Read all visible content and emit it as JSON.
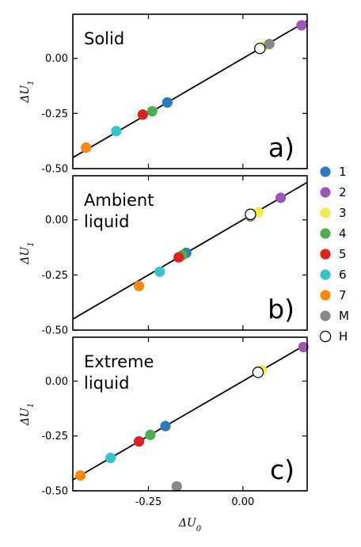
{
  "chart_data": [
    {
      "type": "scatter",
      "title": "",
      "panel_text": [
        "Solid"
      ],
      "tag": "a)",
      "xlabel": "",
      "ylabel": "ΔU1",
      "xlim": [
        -0.45,
        0.17
      ],
      "ylim": [
        -0.5,
        0.2
      ],
      "yticks": [
        0.0,
        -0.25,
        -0.5
      ],
      "ytick_labels": [
        "0.00",
        "-0.25",
        "-0.50"
      ],
      "xticks": [
        -0.25,
        0.0
      ],
      "fit_line": [
        [
          -0.45,
          -0.45
        ],
        [
          0.17,
          0.17
        ]
      ],
      "points": [
        {
          "label": "1",
          "x": -0.2,
          "y": -0.2
        },
        {
          "label": "2",
          "x": 0.155,
          "y": 0.15
        },
        {
          "label": "3",
          "x": 0.055,
          "y": 0.055
        },
        {
          "label": "4",
          "x": -0.24,
          "y": -0.24
        },
        {
          "label": "5",
          "x": -0.265,
          "y": -0.255
        },
        {
          "label": "6",
          "x": -0.335,
          "y": -0.33
        },
        {
          "label": "7",
          "x": -0.415,
          "y": -0.405
        },
        {
          "label": "M",
          "x": 0.07,
          "y": 0.065
        },
        {
          "label": "H",
          "x": 0.045,
          "y": 0.045
        }
      ]
    },
    {
      "type": "scatter",
      "title": "",
      "panel_text": [
        "Ambient",
        "liquid"
      ],
      "tag": "b)",
      "xlabel": "",
      "ylabel": "ΔU1",
      "xlim": [
        -0.45,
        0.17
      ],
      "ylim": [
        -0.5,
        0.2
      ],
      "yticks": [
        0.0,
        -0.25,
        -0.5
      ],
      "ytick_labels": [
        "0.00",
        "-0.25",
        "-0.50"
      ],
      "xticks": [
        -0.25,
        0.0
      ],
      "fit_line": [
        [
          -0.45,
          -0.45
        ],
        [
          0.17,
          0.17
        ]
      ],
      "points": [
        {
          "label": "1",
          "x": -0.15,
          "y": -0.15
        },
        {
          "label": "2",
          "x": 0.1,
          "y": 0.1
        },
        {
          "label": "3",
          "x": 0.04,
          "y": 0.035
        },
        {
          "label": "4",
          "x": -0.16,
          "y": -0.16
        },
        {
          "label": "5",
          "x": -0.17,
          "y": -0.17
        },
        {
          "label": "6",
          "x": -0.22,
          "y": -0.235
        },
        {
          "label": "7",
          "x": -0.275,
          "y": -0.3
        },
        {
          "label": "M",
          "x": 0.02,
          "y": 0.015
        },
        {
          "label": "H",
          "x": 0.02,
          "y": 0.025
        }
      ]
    },
    {
      "type": "scatter",
      "title": "",
      "panel_text": [
        "Extreme",
        "liquid"
      ],
      "tag": "c)",
      "xlabel": "ΔU0",
      "ylabel": "ΔU1",
      "xlim": [
        -0.45,
        0.17
      ],
      "ylim": [
        -0.5,
        0.2
      ],
      "yticks": [
        0.0,
        -0.25,
        -0.5
      ],
      "ytick_labels": [
        "0.00",
        "-0.25",
        "-0.50"
      ],
      "xticks": [
        -0.25,
        0.0
      ],
      "xtick_labels": [
        "-0.25",
        "0.00"
      ],
      "fit_line": [
        [
          -0.45,
          -0.45
        ],
        [
          0.17,
          0.17
        ]
      ],
      "points": [
        {
          "label": "1",
          "x": -0.205,
          "y": -0.205
        },
        {
          "label": "2",
          "x": 0.16,
          "y": 0.155
        },
        {
          "label": "3",
          "x": 0.05,
          "y": 0.05
        },
        {
          "label": "4",
          "x": -0.245,
          "y": -0.245
        },
        {
          "label": "5",
          "x": -0.275,
          "y": -0.275
        },
        {
          "label": "6",
          "x": -0.35,
          "y": -0.35
        },
        {
          "label": "7",
          "x": -0.43,
          "y": -0.43
        },
        {
          "label": "M",
          "x": -0.175,
          "y": -0.48
        },
        {
          "label": "H",
          "x": 0.04,
          "y": 0.04
        }
      ]
    }
  ],
  "legend": {
    "placement": "right",
    "entries": [
      {
        "label": "1",
        "color": "#2a7bbf",
        "filled": true
      },
      {
        "label": "2",
        "color": "#9b59b6",
        "filled": true
      },
      {
        "label": "3",
        "color": "#eeee44",
        "filled": true
      },
      {
        "label": "4",
        "color": "#4cae4c",
        "filled": true
      },
      {
        "label": "5",
        "color": "#dd2222",
        "filled": true
      },
      {
        "label": "6",
        "color": "#33c4cc",
        "filled": true
      },
      {
        "label": "7",
        "color": "#ff8811",
        "filled": true
      },
      {
        "label": "M",
        "color": "#888888",
        "filled": true
      },
      {
        "label": "H",
        "color": "#ffffff",
        "filled": false
      }
    ]
  }
}
